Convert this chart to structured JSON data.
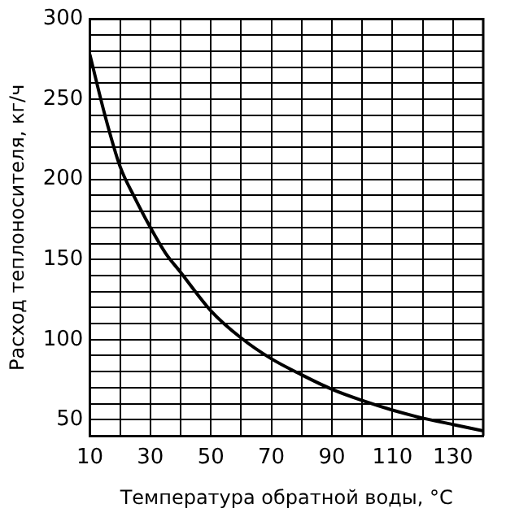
{
  "chart_data": {
    "type": "line",
    "xlabel": "Температура обратной воды, °C",
    "ylabel": "Расход теплоносителя, кг/ч",
    "x": [
      10,
      15,
      20,
      25,
      30,
      35,
      40,
      50,
      60,
      70,
      80,
      90,
      100,
      110,
      120,
      130,
      140
    ],
    "series": [
      {
        "color": "#000000",
        "values": [
          278,
          240,
          208,
          188,
          170,
          154,
          142,
          118,
          101,
          88,
          78,
          69,
          62,
          56,
          51,
          47,
          43
        ]
      }
    ],
    "xlim": [
      10,
      140
    ],
    "ylim": [
      40,
      300
    ],
    "xticks": [
      10,
      {
        "value": 20,
        "label": null
      },
      30,
      {
        "value": 40,
        "label": null
      },
      50,
      {
        "value": 60,
        "label": null
      },
      70,
      {
        "value": 80,
        "label": null
      },
      90,
      {
        "value": 100,
        "label": null
      },
      110,
      {
        "value": 120,
        "label": null
      },
      130,
      {
        "value": 140,
        "label": null
      }
    ],
    "yticks": [
      {
        "value": 40,
        "label": null
      },
      50,
      {
        "value": 60,
        "label": null
      },
      {
        "value": 70,
        "label": null
      },
      {
        "value": 80,
        "label": null
      },
      {
        "value": 90,
        "label": null
      },
      100,
      {
        "value": 110,
        "label": null
      },
      {
        "value": 120,
        "label": null
      },
      {
        "value": 130,
        "label": null
      },
      {
        "value": 140,
        "label": null
      },
      150,
      {
        "value": 160,
        "label": null
      },
      {
        "value": 170,
        "label": null
      },
      {
        "value": 180,
        "label": null
      },
      {
        "value": 190,
        "label": null
      },
      200,
      {
        "value": 210,
        "label": null
      },
      {
        "value": 220,
        "label": null
      },
      {
        "value": 230,
        "label": null
      },
      {
        "value": 240,
        "label": null
      },
      250,
      {
        "value": 260,
        "label": null
      },
      {
        "value": 270,
        "label": null
      },
      {
        "value": 280,
        "label": null
      },
      {
        "value": 290,
        "label": null
      },
      300
    ],
    "grid": true,
    "legend": false,
    "marker": "none",
    "line_style": "solid"
  }
}
